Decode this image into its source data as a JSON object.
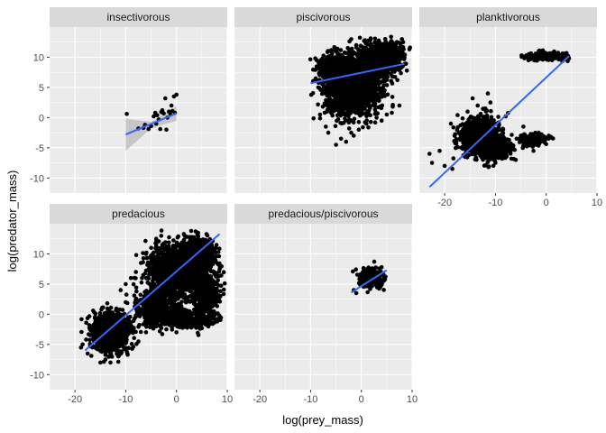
{
  "chart_data": {
    "type": "scatter",
    "xlabel": "log(prey_mass)",
    "ylabel": "log(predator_mass)",
    "xlim": [
      -25,
      10
    ],
    "ylim": [
      -12.5,
      15
    ],
    "x_ticks": [
      -20,
      -10,
      0,
      10
    ],
    "y_ticks": [
      -10,
      -5,
      0,
      5,
      10
    ],
    "grid": true,
    "colors": {
      "panel_bg": "#ebebeb",
      "strip_bg": "#d9d9d9",
      "grid_major": "#ffffff",
      "point": "#000000",
      "fit_line": "#3366ff",
      "ribbon": "#bfbfbf"
    },
    "facets": [
      {
        "label": "insectivorous",
        "points": [
          [
            -9.8,
            0.6
          ],
          [
            -7.5,
            -1.8
          ],
          [
            -6.2,
            -1.2
          ],
          [
            -5.5,
            -1.9
          ],
          [
            -5.0,
            -1.4
          ],
          [
            -4.5,
            0.2
          ],
          [
            -4.2,
            0.8
          ],
          [
            -3.8,
            0.4
          ],
          [
            -3.5,
            -0.3
          ],
          [
            -3.2,
            -1.9
          ],
          [
            -2.8,
            1.2
          ],
          [
            -2.5,
            0.7
          ],
          [
            -2.2,
            3.2
          ],
          [
            -1.8,
            0.0
          ],
          [
            -1.5,
            1.0
          ],
          [
            -1.2,
            0.5
          ],
          [
            -0.8,
            1.1
          ],
          [
            -0.5,
            3.5
          ],
          [
            -0.3,
            0.8
          ],
          [
            0.0,
            3.8
          ],
          [
            -2.0,
            -2.0
          ],
          [
            -3.0,
            0.9
          ],
          [
            -4.0,
            -1.0
          ],
          [
            -1.0,
            2.0
          ],
          [
            -6.5,
            -1.7
          ]
        ],
        "fit": {
          "x": [
            -10,
            0
          ],
          "y": [
            -2.8,
            0.7
          ]
        },
        "ribbon": {
          "x": [
            -10,
            -5,
            0
          ],
          "lower": [
            -5.5,
            -1.8,
            -0.5
          ],
          "upper": [
            -0.2,
            -0.7,
            1.9
          ]
        },
        "clouds": []
      },
      {
        "label": "piscivorous",
        "points": [
          [
            -9.0,
            6.5
          ],
          [
            -8.5,
            5.0
          ],
          [
            -7.0,
            -1.5
          ],
          [
            -6.5,
            -2.5
          ],
          [
            -5.0,
            -4.5
          ],
          [
            -4.0,
            -3.5
          ],
          [
            -3.0,
            -4.0
          ],
          [
            -2.0,
            -2.5
          ],
          [
            -1.5,
            -3.0
          ],
          [
            -0.5,
            -2.0
          ],
          [
            1.0,
            -1.0
          ],
          [
            3.0,
            0.0
          ],
          [
            4.0,
            -0.5
          ],
          [
            5.0,
            0.5
          ],
          [
            6.0,
            0.8
          ],
          [
            7.5,
            2.0
          ],
          [
            8.0,
            13.0
          ],
          [
            7.0,
            12.5
          ],
          [
            -2.0,
            13.0
          ],
          [
            -8.0,
            9.5
          ],
          [
            -9.5,
            6.0
          ],
          [
            -7.5,
            7.0
          ],
          [
            3.5,
            11.0
          ],
          [
            6.5,
            11.5
          ]
        ],
        "fit": {
          "x": [
            -10,
            8.5
          ],
          "y": [
            5.7,
            8.9
          ]
        },
        "ribbon": null,
        "clouds": [
          {
            "cx": -2,
            "cy": 5,
            "sx": 3.5,
            "sy": 2.8,
            "n": 1800
          },
          {
            "cx": 3,
            "cy": 9.5,
            "sx": 2.8,
            "sy": 1.8,
            "n": 1100
          },
          {
            "cx": -5,
            "cy": 8,
            "sx": 2.0,
            "sy": 1.8,
            "n": 500
          },
          {
            "cx": 5.5,
            "cy": 10.5,
            "sx": 1.8,
            "sy": 1.2,
            "n": 400
          }
        ]
      },
      {
        "label": "planktivorous",
        "points": [
          [
            -23.0,
            -6.0
          ],
          [
            -22.5,
            -7.5
          ],
          [
            -21.0,
            -5.5
          ],
          [
            -20.0,
            -8.0
          ],
          [
            -18.5,
            -8.5
          ],
          [
            -17.0,
            -3.5
          ],
          [
            -16.0,
            -6.5
          ],
          [
            -15.5,
            1.0
          ],
          [
            -14.5,
            0.0
          ],
          [
            -13.5,
            2.0
          ],
          [
            -12.0,
            1.5
          ],
          [
            -11.5,
            4.0
          ],
          [
            -11.0,
            2.5
          ],
          [
            -10.0,
            -7.5
          ],
          [
            -8.5,
            -2.0
          ],
          [
            -7.0,
            -4.5
          ],
          [
            -6.0,
            -7.0
          ],
          [
            -5.0,
            -3.0
          ],
          [
            -4.5,
            -1.5
          ],
          [
            -3.5,
            -4.0
          ],
          [
            -2.5,
            -5.5
          ],
          [
            -1.5,
            -2.5
          ],
          [
            -0.5,
            -3.5
          ],
          [
            0.5,
            -3.0
          ],
          [
            -4.0,
            10.0
          ],
          [
            -3.5,
            9.5
          ],
          [
            4.5,
            9.8
          ],
          [
            4.0,
            10.7
          ],
          [
            -14.5,
            3.2
          ],
          [
            -8.0,
            0.2
          ]
        ],
        "fit": {
          "x": [
            -23,
            4.5
          ],
          "y": [
            -11.5,
            10.2
          ]
        },
        "ribbon": null,
        "clouds": [
          {
            "cx": -13,
            "cy": -3,
            "sx": 2.5,
            "sy": 2.0,
            "n": 900
          },
          {
            "cx": -10.5,
            "cy": -5,
            "sx": 2.2,
            "sy": 1.2,
            "n": 500
          },
          {
            "cx": 0.5,
            "cy": 10.2,
            "sx": 2.5,
            "sy": 0.4,
            "n": 250
          },
          {
            "cx": -2.5,
            "cy": -3.8,
            "sx": 1.8,
            "sy": 0.8,
            "n": 120
          }
        ]
      },
      {
        "label": "predacious",
        "points": [
          [
            -18.5,
            -5.0
          ],
          [
            -17.5,
            -6.5
          ],
          [
            -16.5,
            -3.0
          ],
          [
            -15.0,
            -8.0
          ],
          [
            -14.0,
            -7.5
          ],
          [
            -13.0,
            -8.0
          ],
          [
            -12.5,
            -1.0
          ],
          [
            -11.0,
            4.0
          ],
          [
            -10.0,
            5.0
          ],
          [
            -9.0,
            6.0
          ],
          [
            -8.0,
            7.0
          ],
          [
            -7.0,
            8.5
          ],
          [
            -6.0,
            10.0
          ],
          [
            -5.0,
            11.0
          ],
          [
            -4.0,
            12.5
          ],
          [
            -3.0,
            13.0
          ],
          [
            -6.0,
            -3.0
          ],
          [
            -4.0,
            -2.0
          ],
          [
            -2.0,
            -2.5
          ],
          [
            0.0,
            -3.0
          ],
          [
            2.0,
            -2.0
          ],
          [
            4.0,
            -1.5
          ],
          [
            6.0,
            -0.5
          ],
          [
            8.0,
            4.0
          ],
          [
            8.5,
            7.5
          ],
          [
            -10.0,
            2.0
          ],
          [
            -9.5,
            -0.5
          ],
          [
            -7.5,
            -4.5
          ]
        ],
        "fit": {
          "x": [
            -18,
            8.5
          ],
          "y": [
            -6.0,
            13.3
          ]
        },
        "ribbon": null,
        "clouds": [
          {
            "cx": 0,
            "cy": 7,
            "sx": 3.5,
            "sy": 2.8,
            "n": 1500
          },
          {
            "cx": -13,
            "cy": -3,
            "sx": 2.4,
            "sy": 2.2,
            "n": 1000
          },
          {
            "cx": -4,
            "cy": 1,
            "sx": 3.0,
            "sy": 2.0,
            "n": 500
          },
          {
            "cx": 4,
            "cy": 9.5,
            "sx": 2.5,
            "sy": 2.0,
            "n": 700
          },
          {
            "cx": 2,
            "cy": -1,
            "sx": 3.5,
            "sy": 1.0,
            "n": 350
          },
          {
            "cx": 6,
            "cy": 3,
            "sx": 1.8,
            "sy": 2.2,
            "n": 300
          }
        ]
      },
      {
        "label": "predacious/piscivorous",
        "points": [
          [
            -1.5,
            4.0
          ],
          [
            -1.0,
            3.5
          ],
          [
            0.0,
            5.0
          ],
          [
            1.0,
            6.5
          ],
          [
            2.0,
            5.5
          ],
          [
            3.0,
            7.0
          ],
          [
            4.0,
            7.8
          ],
          [
            4.5,
            6.0
          ],
          [
            3.5,
            4.5
          ],
          [
            2.5,
            7.5
          ]
        ],
        "fit": {
          "x": [
            -2,
            5
          ],
          "y": [
            3.6,
            7.3
          ]
        },
        "ribbon": null,
        "clouds": [
          {
            "cx": 2,
            "cy": 6,
            "sx": 1.6,
            "sy": 1.0,
            "n": 250
          }
        ]
      }
    ]
  }
}
